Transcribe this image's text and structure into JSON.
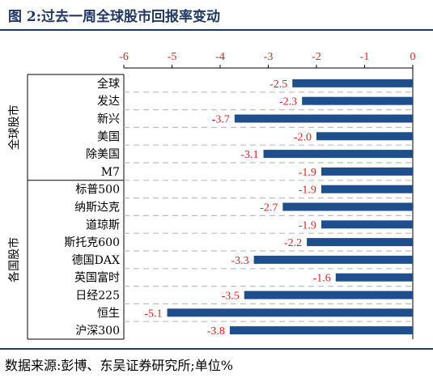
{
  "figure": {
    "title": "图 2:过去一周全球股市回报率变动",
    "source": "数据来源:彭博、东吴证券研究所;单位%"
  },
  "colors": {
    "bar": "#1f4e8c",
    "label": "#e02020",
    "axis_tick": "#e02020",
    "title": "#1f3864",
    "grid": "#bfbfbf"
  },
  "chart_data": {
    "type": "bar",
    "orientation": "horizontal",
    "xlim": [
      -6,
      0
    ],
    "xticks": [
      "-6",
      "-5",
      "-4",
      "-3",
      "-2",
      "-1",
      "0"
    ],
    "grid": "horizontal dashed",
    "groups": [
      {
        "label": "全球股市",
        "start": 0,
        "end": 5
      },
      {
        "label": "各国股市",
        "start": 6,
        "end": 14
      }
    ],
    "categories": [
      "全球",
      "发达",
      "新兴",
      "美国",
      "除美国",
      "M7",
      "标普500",
      "纳斯达克",
      "道琼斯",
      "斯托克600",
      "德国DAX",
      "英国富时",
      "日经225",
      "恒生",
      "沪深300"
    ],
    "values": [
      -2.5,
      -2.3,
      -3.7,
      -2.0,
      -3.1,
      -1.9,
      -1.9,
      -2.7,
      -1.9,
      -2.2,
      -3.3,
      -1.6,
      -3.5,
      -5.1,
      -3.8
    ],
    "labels": [
      "-2.5",
      "-2.3",
      "-3.7",
      "-2.0",
      "-3.1",
      "-1.9",
      "-1.9",
      "-2.7",
      "-1.9",
      "-2.2",
      "-3.3",
      "-1.6",
      "-3.5",
      "-5.1",
      "-3.8"
    ]
  }
}
